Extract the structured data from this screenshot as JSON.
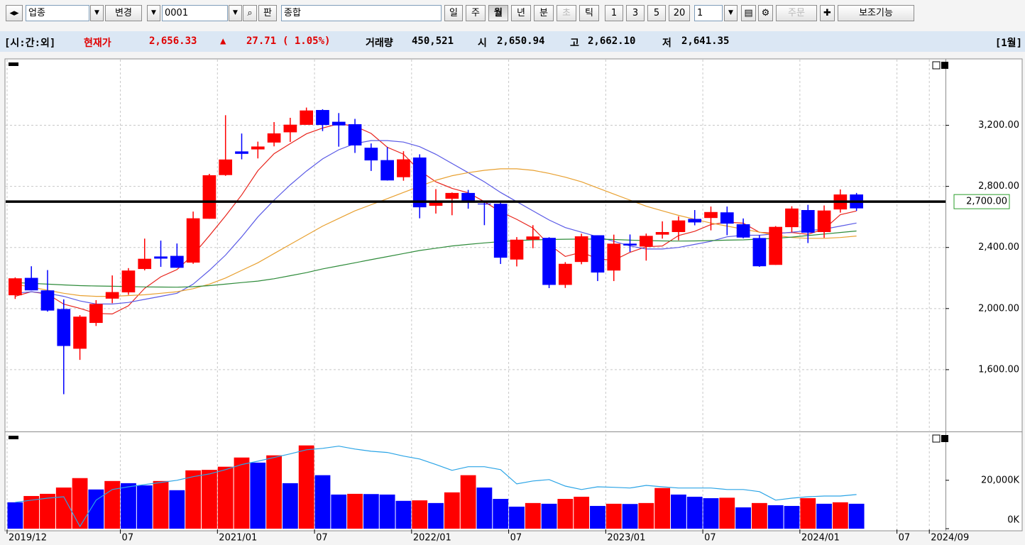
{
  "toolbar": {
    "market_type": "업종",
    "change": "변경",
    "code": "0001",
    "board": "판",
    "name": "종합",
    "periods": [
      "일",
      "주",
      "월",
      "년",
      "분",
      "초",
      "틱"
    ],
    "intervals": [
      "1",
      "3",
      "5",
      "20"
    ],
    "count": "1",
    "order": "주문",
    "aux": "보조기능"
  },
  "info_bar": {
    "session": "[시:간:외]",
    "price_label": "현재가",
    "price": "2,656.33",
    "arrow": "▲",
    "change": "27.71",
    "change_pct": "( 1.05%)",
    "volume_label": "거래량",
    "volume": "450,521",
    "open_label": "시",
    "open": "2,650.94",
    "high_label": "고",
    "high": "2,662.10",
    "low_label": "저",
    "low": "2,641.35",
    "period": "[1월]"
  },
  "chart_data": [
    {
      "type": "candlestick",
      "up_color": "#ff0000",
      "down_color": "#0000ff",
      "ylim": [
        1200,
        3630
      ],
      "yticks": [
        {
          "value": 1600,
          "label": "1,600.00"
        },
        {
          "value": 2000,
          "label": "2,000.00"
        },
        {
          "value": 2400,
          "label": "2,400.00"
        },
        {
          "value": 2800,
          "label": "2,800.00"
        },
        {
          "value": 3200,
          "label": "3,200.00"
        }
      ],
      "grid": true,
      "open": [
        2087,
        2201,
        2119,
        1997,
        1737,
        1906,
        2065,
        2106,
        2259,
        2341,
        2345,
        2301,
        2588,
        2874,
        3029,
        3042,
        3087,
        3154,
        3203,
        3300,
        3223,
        3207,
        3053,
        2972,
        2860,
        2989,
        2673,
        2719,
        2757,
        2687,
        2686,
        2321,
        2451,
        2463,
        2155,
        2305,
        2480,
        2249,
        2425,
        2406,
        2484,
        2501,
        2587,
        2593,
        2630,
        2552,
        2462,
        2286,
        2533,
        2645,
        2501,
        2649,
        2747,
        null,
        null,
        null,
        null,
        null
      ],
      "high": [
        2204,
        2277,
        2252,
        2060,
        1957,
        2055,
        2217,
        2265,
        2458,
        2445,
        2426,
        2635,
        2882,
        3266,
        3146,
        3093,
        3221,
        3249,
        3316,
        3305,
        3280,
        3242,
        3081,
        3057,
        3030,
        3010,
        2782,
        2760,
        2777,
        2702,
        2707,
        2468,
        2546,
        2467,
        2304,
        2490,
        2480,
        2484,
        2485,
        2491,
        2571,
        2604,
        2645,
        2668,
        2668,
        2590,
        2480,
        2540,
        2670,
        2679,
        2675,
        2780,
        2757,
        null,
        null,
        null,
        null,
        null
      ],
      "low": [
        2063,
        2119,
        1980,
        1439,
        1664,
        1886,
        2035,
        2090,
        2250,
        2273,
        2267,
        2293,
        2588,
        2869,
        2977,
        2983,
        3062,
        3091,
        3203,
        3162,
        3060,
        3019,
        2901,
        2838,
        2837,
        2591,
        2622,
        2611,
        2654,
        2546,
        2292,
        2276,
        2395,
        2134,
        2135,
        2290,
        2180,
        2180,
        2371,
        2314,
        2458,
        2447,
        2545,
        2512,
        2480,
        2460,
        2273,
        2286,
        2500,
        2429,
        2463,
        2628,
        2640,
        null,
        null,
        null,
        null,
        null
      ],
      "close": [
        2198,
        2119,
        1987,
        1755,
        1947,
        2030,
        2108,
        2249,
        2326,
        2327,
        2267,
        2591,
        2873,
        2976,
        3013,
        3061,
        3147,
        3204,
        3297,
        3202,
        3199,
        3068,
        2970,
        2839,
        2977,
        2663,
        2699,
        2757,
        2695,
        2685,
        2333,
        2451,
        2472,
        2155,
        2293,
        2473,
        2236,
        2425,
        2413,
        2476,
        2501,
        2577,
        2564,
        2632,
        2556,
        2465,
        2277,
        2535,
        2655,
        2497,
        2642,
        2747,
        2656,
        null,
        null,
        null,
        null,
        null
      ],
      "lines": [
        {
          "color": "#e8241c",
          "values": [
            2080,
            2110,
            2095,
            2029,
            2001,
            1968,
            1965,
            2018,
            2132,
            2208,
            2255,
            2352,
            2477,
            2607,
            2744,
            2903,
            3014,
            3080,
            3144,
            3182,
            3210,
            3194,
            3147,
            3056,
            3011,
            2903,
            2830,
            2787,
            2758,
            2700,
            2634,
            2584,
            2527,
            2419,
            2341,
            2369,
            2326,
            2316,
            2368,
            2405,
            2410,
            2478,
            2506,
            2550,
            2566,
            2559,
            2499,
            2493,
            2498,
            2486,
            2521,
            2615,
            2639,
            null,
            null,
            null,
            null,
            null
          ]
        },
        {
          "color": "#5a5ae6",
          "values": [
            2100,
            2110,
            2100,
            2080,
            2050,
            2030,
            2030,
            2040,
            2060,
            2080,
            2100,
            2160,
            2250,
            2350,
            2470,
            2600,
            2710,
            2810,
            2900,
            2980,
            3040,
            3080,
            3100,
            3100,
            3090,
            3060,
            3010,
            2950,
            2890,
            2830,
            2760,
            2700,
            2640,
            2580,
            2530,
            2500,
            2470,
            2440,
            2410,
            2390,
            2390,
            2400,
            2420,
            2440,
            2470,
            2480,
            2480,
            2490,
            2500,
            2510,
            2520,
            2540,
            2560,
            null,
            null,
            null,
            null,
            null
          ]
        },
        {
          "color": "#e8a030",
          "values": [
            2160,
            2140,
            2120,
            2100,
            2085,
            2080,
            2080,
            2085,
            2090,
            2100,
            2110,
            2130,
            2160,
            2200,
            2250,
            2300,
            2360,
            2420,
            2480,
            2540,
            2590,
            2640,
            2680,
            2720,
            2760,
            2800,
            2840,
            2870,
            2890,
            2905,
            2915,
            2915,
            2905,
            2885,
            2860,
            2830,
            2790,
            2750,
            2710,
            2670,
            2640,
            2610,
            2585,
            2560,
            2540,
            2520,
            2500,
            2480,
            2465,
            2460,
            2460,
            2465,
            2475,
            null,
            null,
            null,
            null,
            null
          ]
        },
        {
          "color": "#2e8b3a",
          "values": [
            2170,
            2165,
            2160,
            2155,
            2150,
            2148,
            2146,
            2144,
            2142,
            2141,
            2140,
            2143,
            2150,
            2160,
            2170,
            2180,
            2195,
            2215,
            2235,
            2260,
            2280,
            2300,
            2320,
            2340,
            2360,
            2380,
            2395,
            2410,
            2420,
            2430,
            2438,
            2445,
            2450,
            2452,
            2454,
            2455,
            2455,
            2452,
            2448,
            2445,
            2443,
            2442,
            2443,
            2445,
            2448,
            2450,
            2455,
            2460,
            2468,
            2478,
            2488,
            2498,
            2508,
            null,
            null,
            null,
            null,
            null
          ]
        }
      ],
      "hline": {
        "value": 2700,
        "label": "2,700.00",
        "color": "#000000"
      }
    },
    {
      "type": "bar",
      "up_color": "#ff0000",
      "down_color": "#0000ff",
      "categories": [
        "2019/12",
        null,
        null,
        null,
        null,
        null,
        null,
        "07",
        null,
        null,
        null,
        null,
        null,
        "2021/01",
        null,
        null,
        null,
        null,
        null,
        "07",
        null,
        null,
        null,
        null,
        null,
        "2022/01",
        null,
        null,
        null,
        null,
        null,
        "07",
        null,
        null,
        null,
        null,
        null,
        "2023/01",
        null,
        null,
        null,
        null,
        null,
        "07",
        null,
        null,
        null,
        null,
        null,
        "2024/01",
        null,
        null,
        null,
        null,
        null,
        "07",
        null,
        "2024/09"
      ],
      "ylim": [
        0,
        39000
      ],
      "yticks": [
        {
          "value": 0,
          "label": "0K"
        },
        {
          "value": 20000,
          "label": "20,000K"
        }
      ],
      "values": [
        10900,
        13500,
        14400,
        17000,
        20900,
        16200,
        19700,
        18800,
        17900,
        19700,
        15900,
        24100,
        24300,
        25600,
        29400,
        27300,
        30300,
        18800,
        34400,
        22100,
        14100,
        14400,
        14300,
        14100,
        11500,
        11700,
        10600,
        15000,
        22100,
        17000,
        12300,
        9100,
        10600,
        10300,
        12300,
        13200,
        9400,
        10300,
        10200,
        10600,
        16800,
        14100,
        13200,
        12600,
        12800,
        8800,
        10600,
        9700,
        9400,
        12600,
        10300,
        10900,
        10300,
        null,
        null,
        null,
        null,
        null
      ],
      "line": {
        "color": "#2aa4e6",
        "values": [
          10900,
          11800,
          12600,
          13200,
          900,
          11800,
          16200,
          17300,
          18200,
          19100,
          20000,
          21500,
          22600,
          24400,
          26500,
          27900,
          29400,
          30900,
          32600,
          33200,
          34100,
          32900,
          32000,
          31500,
          30000,
          28800,
          26500,
          24100,
          25600,
          25600,
          24400,
          18500,
          19700,
          20300,
          17600,
          16200,
          17300,
          17100,
          16800,
          17900,
          17300,
          16800,
          16800,
          16800,
          16200,
          16200,
          15300,
          11800,
          12600,
          13200,
          13500,
          13500,
          14100,
          null,
          null,
          null,
          null,
          null
        ]
      }
    }
  ]
}
